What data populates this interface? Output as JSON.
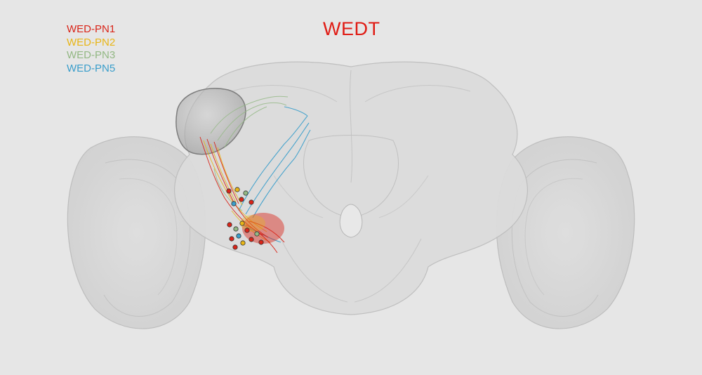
{
  "title": "WEDT",
  "title_color": "#e01b14",
  "legend": [
    {
      "label": "WED-PN1",
      "color": "#d92418"
    },
    {
      "label": "WED-PN2",
      "color": "#e8b516"
    },
    {
      "label": "WED-PN3",
      "color": "#93b884"
    },
    {
      "label": "WED-PN5",
      "color": "#3a9ecb"
    }
  ],
  "image": {
    "subject": "brain-render",
    "background_color": "#e6e6e6",
    "tissue_color": "#d6d6d6",
    "highlight_region_color": "#9a9a9a"
  }
}
